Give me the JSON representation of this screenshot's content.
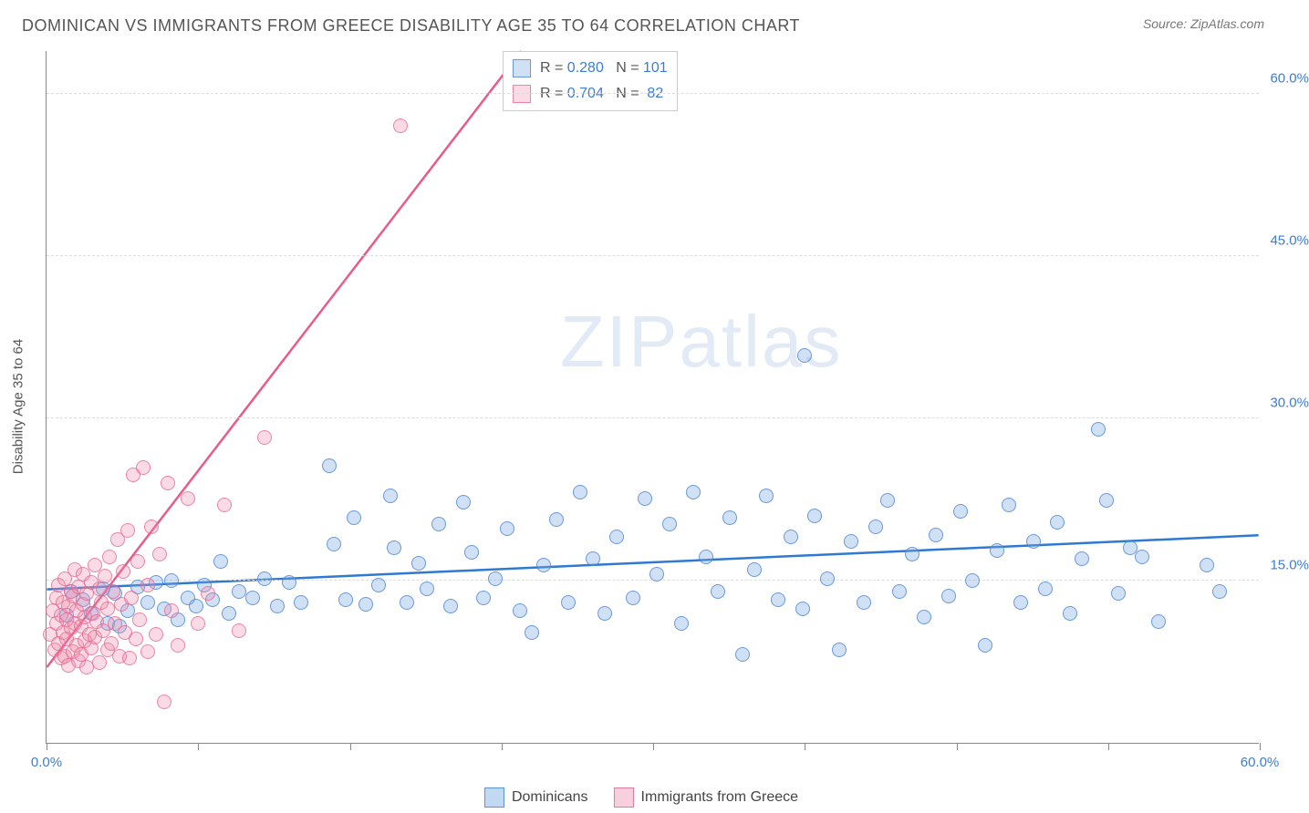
{
  "title": "DOMINICAN VS IMMIGRANTS FROM GREECE DISABILITY AGE 35 TO 64 CORRELATION CHART",
  "source": "Source: ZipAtlas.com",
  "ylabel": "Disability Age 35 to 64",
  "watermark_bold": "ZIP",
  "watermark_thin": "atlas",
  "chart": {
    "type": "scatter",
    "xlim": [
      0,
      60
    ],
    "ylim": [
      0,
      64
    ],
    "x_ticks": [
      0,
      7.5,
      15,
      22.5,
      30,
      37.5,
      45,
      52.5,
      60
    ],
    "x_tick_labels": {
      "0": "0.0%",
      "60": "60.0%"
    },
    "y_gridlines": [
      15,
      30,
      45,
      60
    ],
    "y_tick_labels": {
      "15": "15.0%",
      "30": "30.0%",
      "45": "45.0%",
      "60": "60.0%"
    },
    "background_color": "#ffffff",
    "grid_color": "#dddddd",
    "axis_color": "#888888",
    "series": [
      {
        "name": "Dominicans",
        "color_fill": "rgba(120,170,230,0.35)",
        "color_stroke": "rgba(70,130,210,0.75)",
        "marker_size": 16,
        "R": "0.280",
        "N": "101",
        "trend": {
          "x1": 0,
          "y1": 14.2,
          "x2": 60,
          "y2": 19.2,
          "color": "#2f7ad1",
          "dash_tail": false
        },
        "points": [
          [
            1.0,
            11.8
          ],
          [
            1.2,
            14.0
          ],
          [
            1.8,
            13.2
          ],
          [
            2.2,
            12.0
          ],
          [
            2.8,
            14.2
          ],
          [
            3.0,
            11.0
          ],
          [
            3.4,
            13.8
          ],
          [
            3.6,
            10.8
          ],
          [
            4.0,
            12.2
          ],
          [
            4.5,
            14.4
          ],
          [
            5.0,
            13.0
          ],
          [
            5.4,
            14.8
          ],
          [
            5.8,
            12.4
          ],
          [
            6.2,
            15.0
          ],
          [
            6.5,
            11.4
          ],
          [
            7.0,
            13.4
          ],
          [
            7.4,
            12.6
          ],
          [
            7.8,
            14.6
          ],
          [
            8.2,
            13.2
          ],
          [
            8.6,
            16.8
          ],
          [
            9.0,
            12.0
          ],
          [
            9.5,
            14.0
          ],
          [
            10.2,
            13.4
          ],
          [
            10.8,
            15.2
          ],
          [
            11.4,
            12.6
          ],
          [
            12.0,
            14.8
          ],
          [
            12.6,
            13.0
          ],
          [
            14.0,
            25.6
          ],
          [
            14.2,
            18.4
          ],
          [
            14.8,
            13.2
          ],
          [
            15.2,
            20.8
          ],
          [
            15.8,
            12.8
          ],
          [
            16.4,
            14.6
          ],
          [
            17.0,
            22.8
          ],
          [
            17.2,
            18.0
          ],
          [
            17.8,
            13.0
          ],
          [
            18.4,
            16.6
          ],
          [
            18.8,
            14.2
          ],
          [
            19.4,
            20.2
          ],
          [
            20.0,
            12.6
          ],
          [
            20.6,
            22.2
          ],
          [
            21.0,
            17.6
          ],
          [
            21.6,
            13.4
          ],
          [
            22.2,
            15.2
          ],
          [
            22.8,
            19.8
          ],
          [
            23.4,
            12.2
          ],
          [
            24.0,
            10.2
          ],
          [
            24.6,
            16.4
          ],
          [
            25.2,
            20.6
          ],
          [
            25.8,
            13.0
          ],
          [
            26.4,
            23.2
          ],
          [
            27.0,
            17.0
          ],
          [
            27.6,
            12.0
          ],
          [
            28.2,
            19.0
          ],
          [
            29.0,
            13.4
          ],
          [
            29.6,
            22.6
          ],
          [
            30.2,
            15.6
          ],
          [
            30.8,
            20.2
          ],
          [
            31.4,
            11.0
          ],
          [
            32.0,
            23.2
          ],
          [
            32.6,
            17.2
          ],
          [
            33.2,
            14.0
          ],
          [
            33.8,
            20.8
          ],
          [
            34.4,
            8.2
          ],
          [
            35.0,
            16.0
          ],
          [
            35.6,
            22.8
          ],
          [
            37.5,
            35.8
          ],
          [
            36.2,
            13.2
          ],
          [
            36.8,
            19.0
          ],
          [
            37.4,
            12.4
          ],
          [
            38.0,
            21.0
          ],
          [
            38.6,
            15.2
          ],
          [
            39.2,
            8.6
          ],
          [
            39.8,
            18.6
          ],
          [
            40.4,
            13.0
          ],
          [
            41.0,
            20.0
          ],
          [
            41.6,
            22.4
          ],
          [
            42.2,
            14.0
          ],
          [
            42.8,
            17.4
          ],
          [
            43.4,
            11.6
          ],
          [
            44.0,
            19.2
          ],
          [
            44.6,
            13.6
          ],
          [
            45.2,
            21.4
          ],
          [
            45.8,
            15.0
          ],
          [
            46.4,
            9.0
          ],
          [
            47.0,
            17.8
          ],
          [
            47.6,
            22.0
          ],
          [
            48.2,
            13.0
          ],
          [
            48.8,
            18.6
          ],
          [
            49.4,
            14.2
          ],
          [
            50.0,
            20.4
          ],
          [
            50.6,
            12.0
          ],
          [
            51.2,
            17.0
          ],
          [
            52.0,
            29.0
          ],
          [
            52.4,
            22.4
          ],
          [
            53.0,
            13.8
          ],
          [
            53.6,
            18.0
          ],
          [
            54.2,
            17.2
          ],
          [
            55.0,
            11.2
          ],
          [
            57.4,
            16.4
          ],
          [
            58.0,
            14.0
          ]
        ]
      },
      {
        "name": "Immigrants from Greece",
        "color_fill": "rgba(240,140,170,0.32)",
        "color_stroke": "rgba(230,100,140,0.72)",
        "marker_size": 16,
        "R": "0.704",
        "N": "82",
        "trend": {
          "x1": 0,
          "y1": 7.0,
          "x2": 23.5,
          "y2": 64.0,
          "color": "#e85b8a",
          "dash_tail": true,
          "dash_x2": 28.8,
          "dash_y2": 64.0
        },
        "points": [
          [
            0.2,
            10.0
          ],
          [
            0.3,
            12.2
          ],
          [
            0.4,
            8.6
          ],
          [
            0.5,
            11.0
          ],
          [
            0.5,
            13.4
          ],
          [
            0.6,
            9.2
          ],
          [
            0.6,
            14.6
          ],
          [
            0.7,
            7.8
          ],
          [
            0.7,
            11.8
          ],
          [
            0.8,
            10.2
          ],
          [
            0.8,
            13.0
          ],
          [
            0.9,
            8.0
          ],
          [
            0.9,
            15.2
          ],
          [
            1.0,
            11.4
          ],
          [
            1.0,
            9.6
          ],
          [
            1.1,
            12.6
          ],
          [
            1.1,
            7.2
          ],
          [
            1.2,
            14.0
          ],
          [
            1.2,
            10.6
          ],
          [
            1.3,
            8.4
          ],
          [
            1.3,
            13.6
          ],
          [
            1.4,
            11.0
          ],
          [
            1.4,
            16.0
          ],
          [
            1.5,
            9.0
          ],
          [
            1.5,
            12.2
          ],
          [
            1.6,
            7.6
          ],
          [
            1.6,
            14.4
          ],
          [
            1.7,
            10.8
          ],
          [
            1.7,
            8.2
          ],
          [
            1.8,
            12.8
          ],
          [
            1.8,
            15.6
          ],
          [
            1.9,
            9.4
          ],
          [
            1.9,
            11.6
          ],
          [
            2.0,
            13.8
          ],
          [
            2.0,
            7.0
          ],
          [
            2.1,
            10.0
          ],
          [
            2.2,
            14.8
          ],
          [
            2.2,
            8.8
          ],
          [
            2.3,
            12.0
          ],
          [
            2.4,
            16.4
          ],
          [
            2.4,
            9.8
          ],
          [
            2.5,
            11.2
          ],
          [
            2.6,
            14.2
          ],
          [
            2.6,
            7.4
          ],
          [
            2.7,
            13.0
          ],
          [
            2.8,
            10.4
          ],
          [
            2.9,
            15.4
          ],
          [
            3.0,
            8.6
          ],
          [
            3.0,
            12.4
          ],
          [
            3.1,
            17.2
          ],
          [
            3.2,
            9.2
          ],
          [
            3.3,
            14.0
          ],
          [
            3.4,
            11.0
          ],
          [
            3.5,
            18.8
          ],
          [
            3.6,
            8.0
          ],
          [
            3.7,
            12.8
          ],
          [
            3.8,
            15.8
          ],
          [
            3.9,
            10.2
          ],
          [
            4.0,
            19.6
          ],
          [
            4.1,
            7.8
          ],
          [
            4.2,
            13.4
          ],
          [
            4.3,
            24.8
          ],
          [
            4.4,
            9.6
          ],
          [
            4.5,
            16.8
          ],
          [
            4.6,
            11.4
          ],
          [
            4.8,
            25.4
          ],
          [
            5.0,
            8.4
          ],
          [
            5.0,
            14.6
          ],
          [
            5.2,
            20.0
          ],
          [
            5.4,
            10.0
          ],
          [
            5.6,
            17.4
          ],
          [
            5.8,
            3.8
          ],
          [
            6.0,
            24.0
          ],
          [
            6.2,
            12.2
          ],
          [
            6.5,
            9.0
          ],
          [
            7.0,
            22.6
          ],
          [
            7.5,
            11.0
          ],
          [
            8.0,
            13.8
          ],
          [
            8.8,
            22.0
          ],
          [
            9.5,
            10.4
          ],
          [
            10.8,
            28.2
          ],
          [
            17.5,
            57.0
          ]
        ]
      }
    ]
  },
  "stats_labels": {
    "R": "R",
    "N": "N",
    "eq": "="
  },
  "legend": {
    "items": [
      {
        "label": "Dominicans",
        "fill": "rgba(120,170,230,0.45)",
        "stroke": "#5b93d6"
      },
      {
        "label": "Immigrants from Greece",
        "fill": "rgba(240,150,180,0.45)",
        "stroke": "#e27ba0"
      }
    ]
  }
}
